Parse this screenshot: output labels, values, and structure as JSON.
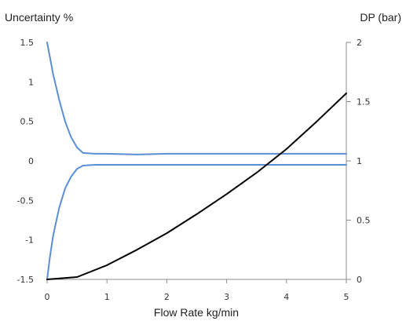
{
  "chart_data": {
    "type": "line",
    "xlabel": "Flow Rate kg/min",
    "ylabel_left": "Uncertainty %",
    "ylabel_right": "DP (bar)",
    "x_ticks": [
      "0",
      "1",
      "2",
      "3",
      "4",
      "5"
    ],
    "y_left_ticks": [
      "-1.5",
      "-1",
      "-0.5",
      "0",
      "0.5",
      "1",
      "1.5"
    ],
    "y_right_ticks": [
      "0",
      "0.5",
      "1",
      "1.5",
      "2"
    ],
    "y_left_tick_values": [
      -1.5,
      -1.0,
      -0.5,
      0.0,
      0.5,
      1.0,
      1.5
    ],
    "y_right_tick_values": [
      0.0,
      0.5,
      1.0,
      1.5,
      2.0
    ],
    "xlim": [
      0,
      5
    ],
    "ylim_left": [
      -1.5,
      1.5
    ],
    "ylim_right": [
      0,
      2
    ],
    "grid": false,
    "series": [
      {
        "axis": "left",
        "color": "#5b8fd4",
        "x": [
          0.0,
          0.05,
          0.1,
          0.2,
          0.3,
          0.4,
          0.5,
          0.6,
          0.8,
          1.0,
          1.5,
          2.0,
          3.0,
          4.0,
          5.0
        ],
        "y": [
          1.5,
          1.3,
          1.1,
          0.78,
          0.5,
          0.3,
          0.17,
          0.1,
          0.09,
          0.09,
          0.08,
          0.09,
          0.09,
          0.09,
          0.09
        ]
      },
      {
        "axis": "left",
        "color": "#5b8fd4",
        "x": [
          0.0,
          0.05,
          0.1,
          0.2,
          0.3,
          0.4,
          0.5,
          0.6,
          0.8,
          1.0,
          1.5,
          2.0,
          3.0,
          4.0,
          5.0
        ],
        "y": [
          -1.5,
          -1.2,
          -0.95,
          -0.6,
          -0.35,
          -0.2,
          -0.1,
          -0.06,
          -0.05,
          -0.05,
          -0.05,
          -0.05,
          -0.05,
          -0.05,
          -0.05
        ]
      },
      {
        "axis": "right",
        "color": "#000000",
        "x": [
          0.0,
          0.5,
          1.0,
          1.5,
          2.0,
          2.5,
          3.0,
          3.5,
          4.0,
          4.5,
          5.0
        ],
        "y": [
          0.0,
          0.02,
          0.12,
          0.25,
          0.39,
          0.55,
          0.72,
          0.9,
          1.1,
          1.33,
          1.57
        ]
      }
    ]
  }
}
